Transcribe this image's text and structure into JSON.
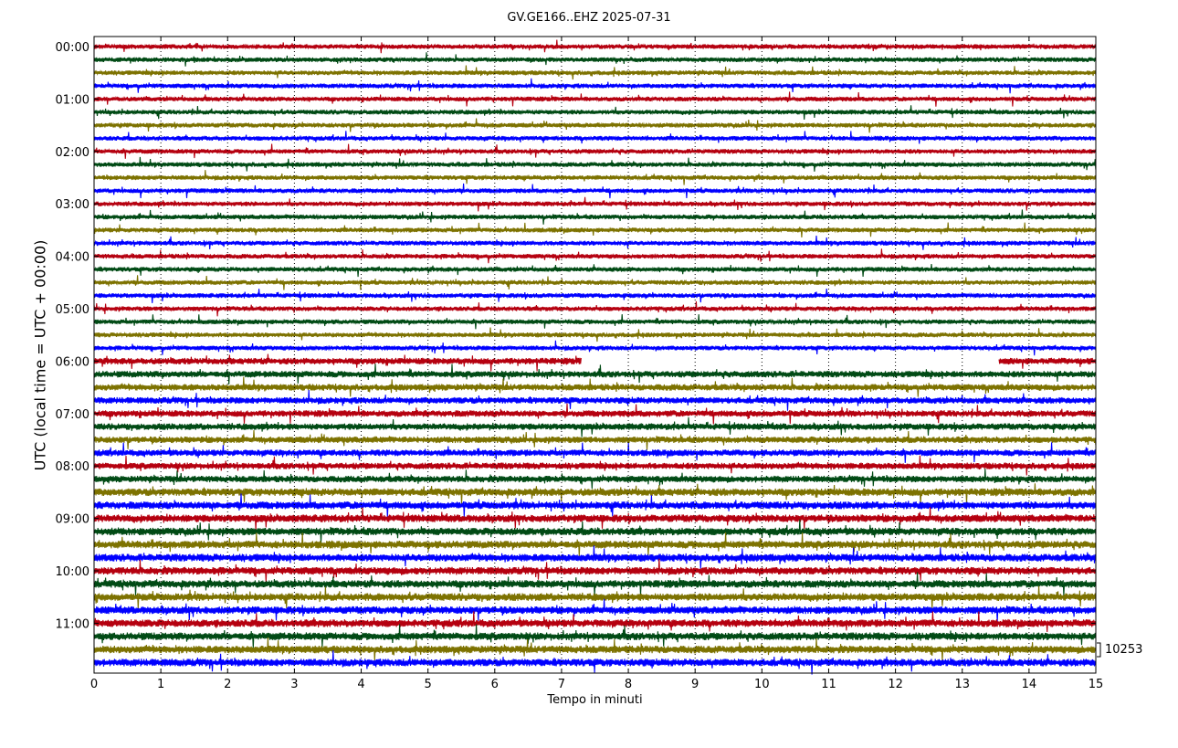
{
  "chart_data": {
    "type": "line",
    "title": "GV.GE166..EHZ 2025-07-31",
    "xlabel": "Tempo in minuti",
    "ylabel": "UTC (local time = UTC + 00:00)",
    "xlim": [
      0,
      15
    ],
    "x_ticks": [
      "0",
      "1",
      "2",
      "3",
      "4",
      "5",
      "6",
      "7",
      "8",
      "9",
      "10",
      "11",
      "12",
      "13",
      "14",
      "15"
    ],
    "y_ticks": [
      "00:00",
      "01:00",
      "02:00",
      "03:00",
      "04:00",
      "05:00",
      "06:00",
      "07:00",
      "08:00",
      "09:00",
      "10:00",
      "11:00"
    ],
    "grid": "vertical dotted at each minute",
    "trace_colors": [
      "#b5000f",
      "#004a14",
      "#7d7200",
      "#0000ff"
    ],
    "trace_count": 48,
    "scale_label": "10253",
    "data_gap": {
      "start_min": 7.3,
      "end_min": 13.55,
      "trace_start": "06:00"
    }
  }
}
